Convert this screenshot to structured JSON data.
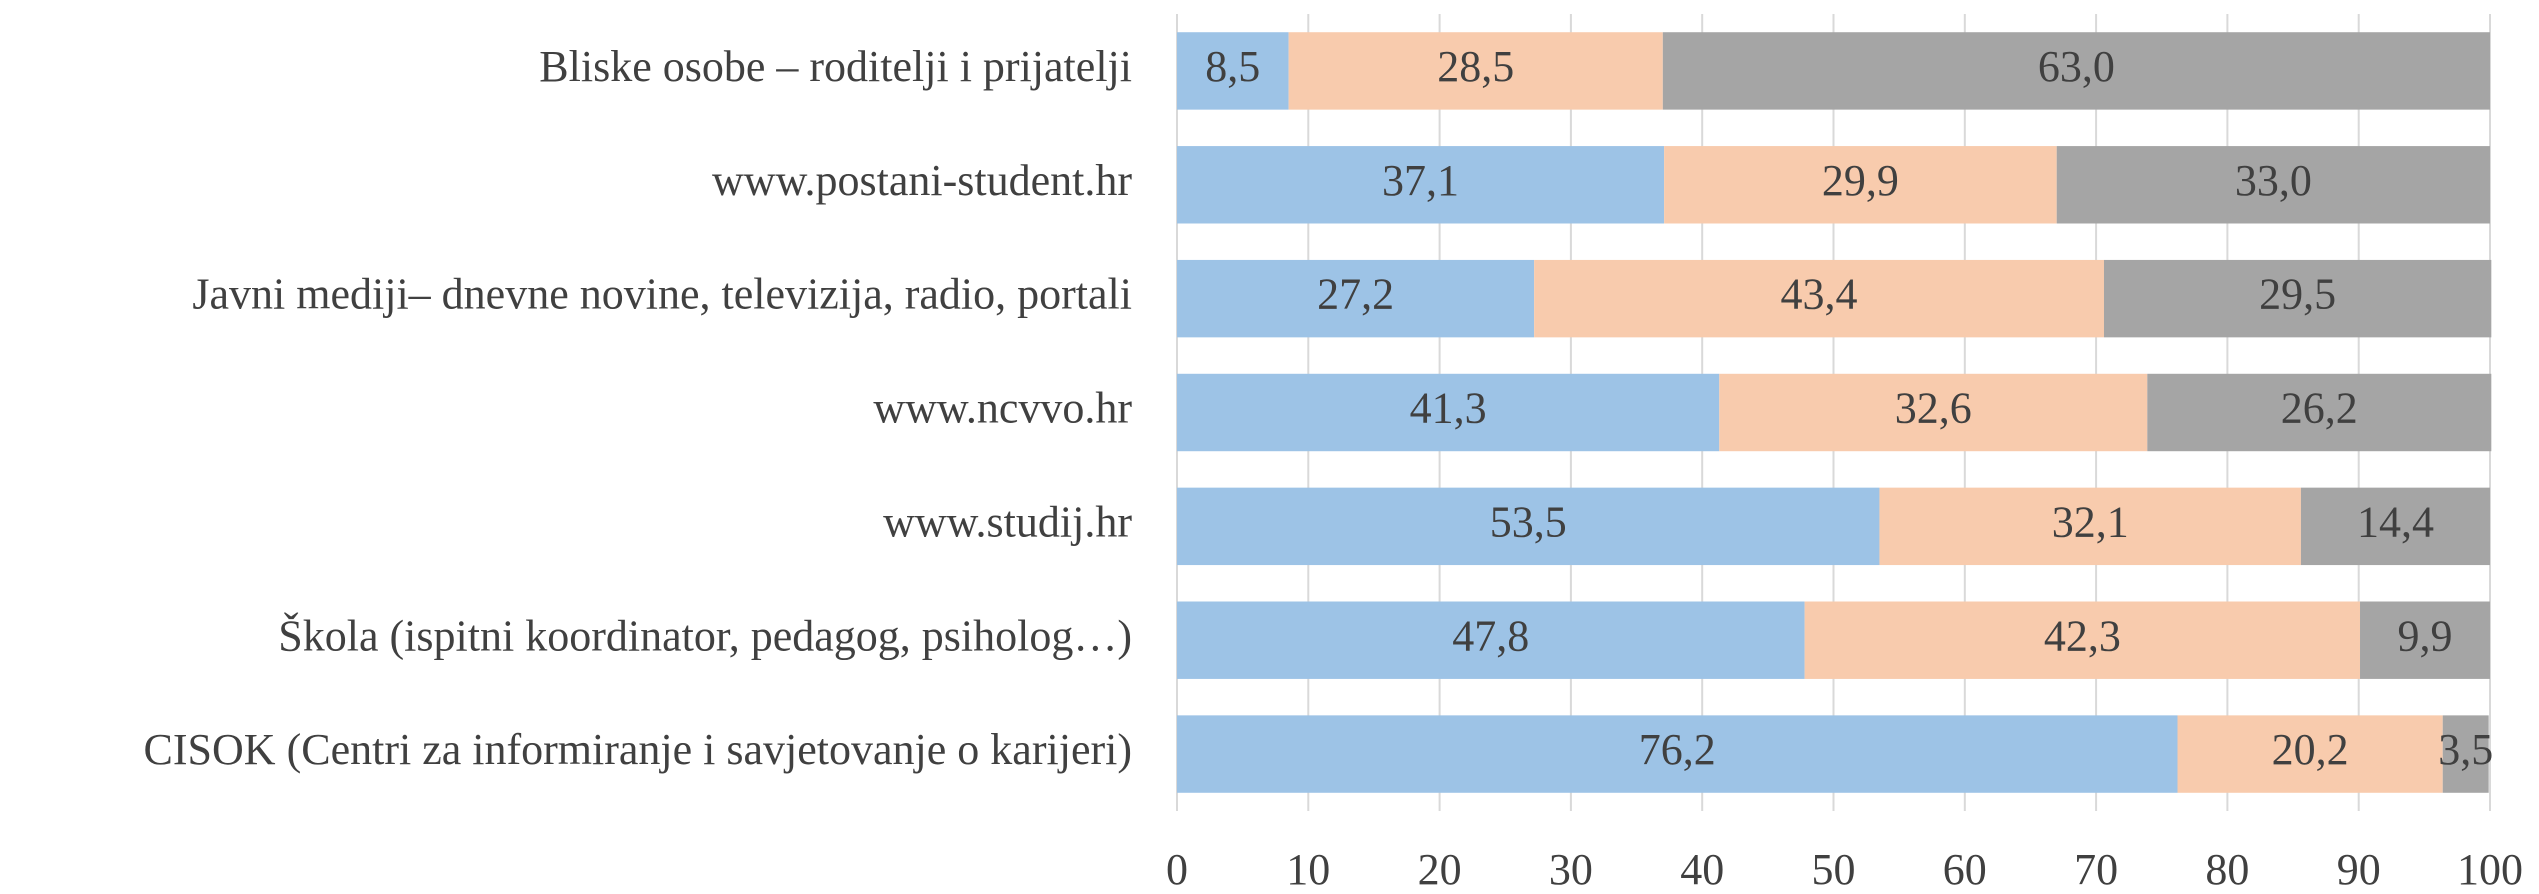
{
  "chart_data": {
    "type": "stacked_bar_horizontal",
    "categories": [
      "Bliske osobe – roditelji i prijatelji",
      "www.postani-student.hr",
      "Javni mediji– dnevne novine, televizija, radio, portali",
      "www.ncvvo.hr",
      "www.studij.hr",
      "Škola (ispitni koordinator, pedagog, psiholog…)",
      "CISOK (Centri za informiranje i savjetovanje o karijeri)"
    ],
    "series": [
      {
        "color": "#9dc3e6",
        "values": [
          8.5,
          37.1,
          27.2,
          41.3,
          53.5,
          47.8,
          76.2
        ],
        "value_labels": [
          "8,5",
          "37,1",
          "27,2",
          "41,3",
          "53,5",
          "47,8",
          "76,2"
        ]
      },
      {
        "color": "#f8cbad",
        "values": [
          28.5,
          29.9,
          43.4,
          32.6,
          32.1,
          42.3,
          20.2
        ],
        "value_labels": [
          "28,5",
          "29,9",
          "43,4",
          "32,6",
          "32,1",
          "42,3",
          "20,2"
        ]
      },
      {
        "color": "#a5a5a5",
        "values": [
          63.0,
          33.0,
          29.5,
          26.2,
          14.4,
          9.9,
          3.5
        ],
        "value_labels": [
          "63,0",
          "33,0",
          "29,5",
          "26,2",
          "14,4",
          "9,9",
          "3,5"
        ]
      }
    ],
    "xlim": [
      0,
      100
    ],
    "xticks": [
      0,
      10,
      20,
      30,
      40,
      50,
      60,
      70,
      80,
      90,
      100
    ],
    "grid": true
  }
}
